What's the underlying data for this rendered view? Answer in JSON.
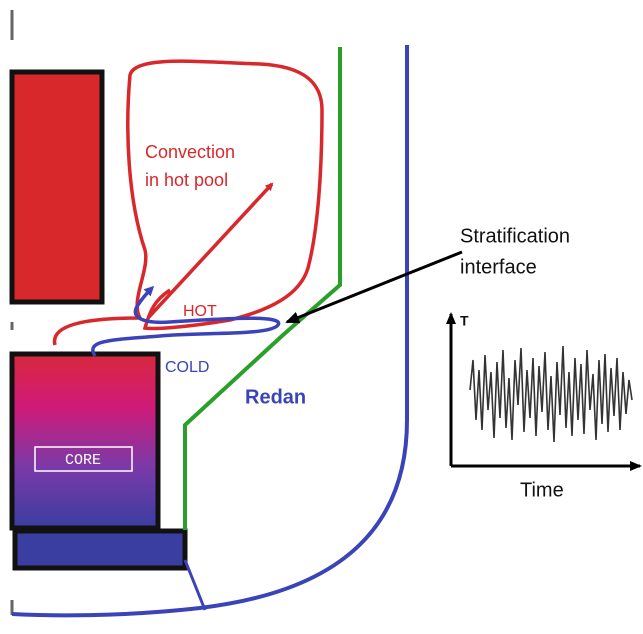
{
  "diagram": {
    "convection_label": [
      "Convection",
      "in hot pool"
    ],
    "stratification_label": [
      "Stratification",
      "interface"
    ],
    "hot_label": "HOT",
    "cold_label": "COLD",
    "redan_label": "Redan",
    "core_label": "CORE",
    "plot_y_label": "T",
    "plot_x_label": "Time"
  }
}
